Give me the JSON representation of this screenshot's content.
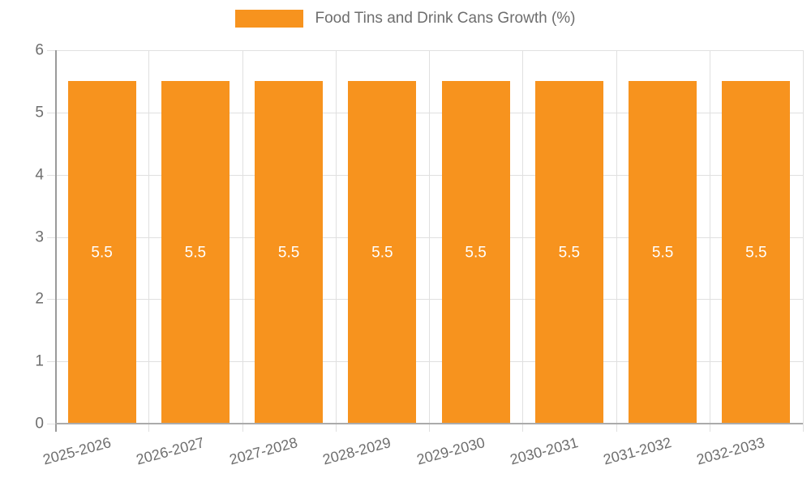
{
  "legend": {
    "label": "Food Tins and Drink Cans Growth (%)",
    "swatch_color": "#F7931E",
    "position": "top-center"
  },
  "colors": {
    "bar": "#F7931E",
    "bar_label_text": "#FFFFFF",
    "axis_text": "#6E6E6E",
    "gridline": "#E0E0E0",
    "axis_line": "#9A9A9A",
    "background": "#FFFFFF"
  },
  "chart_data": {
    "type": "bar",
    "title": "Food Tins and Drink Cans Growth (%)",
    "categories": [
      "2025-2026",
      "2026-2027",
      "2027-2028",
      "2028-2029",
      "2029-2030",
      "2030-2031",
      "2031-2032",
      "2032-2033"
    ],
    "values": [
      5.5,
      5.5,
      5.5,
      5.5,
      5.5,
      5.5,
      5.5,
      5.5
    ],
    "bar_labels": [
      "5.5",
      "5.5",
      "5.5",
      "5.5",
      "5.5",
      "5.5",
      "5.5",
      "5.5"
    ],
    "xlabel": "",
    "ylabel": "",
    "ylim": [
      0,
      6
    ],
    "yticks": [
      0,
      1,
      2,
      3,
      4,
      5,
      6
    ],
    "grid": true,
    "x_label_rotation_deg": -15,
    "legend_position": "top",
    "series": [
      {
        "name": "Food Tins and Drink Cans Growth (%)",
        "color": "#F7931E",
        "values": [
          5.5,
          5.5,
          5.5,
          5.5,
          5.5,
          5.5,
          5.5,
          5.5
        ]
      }
    ]
  }
}
